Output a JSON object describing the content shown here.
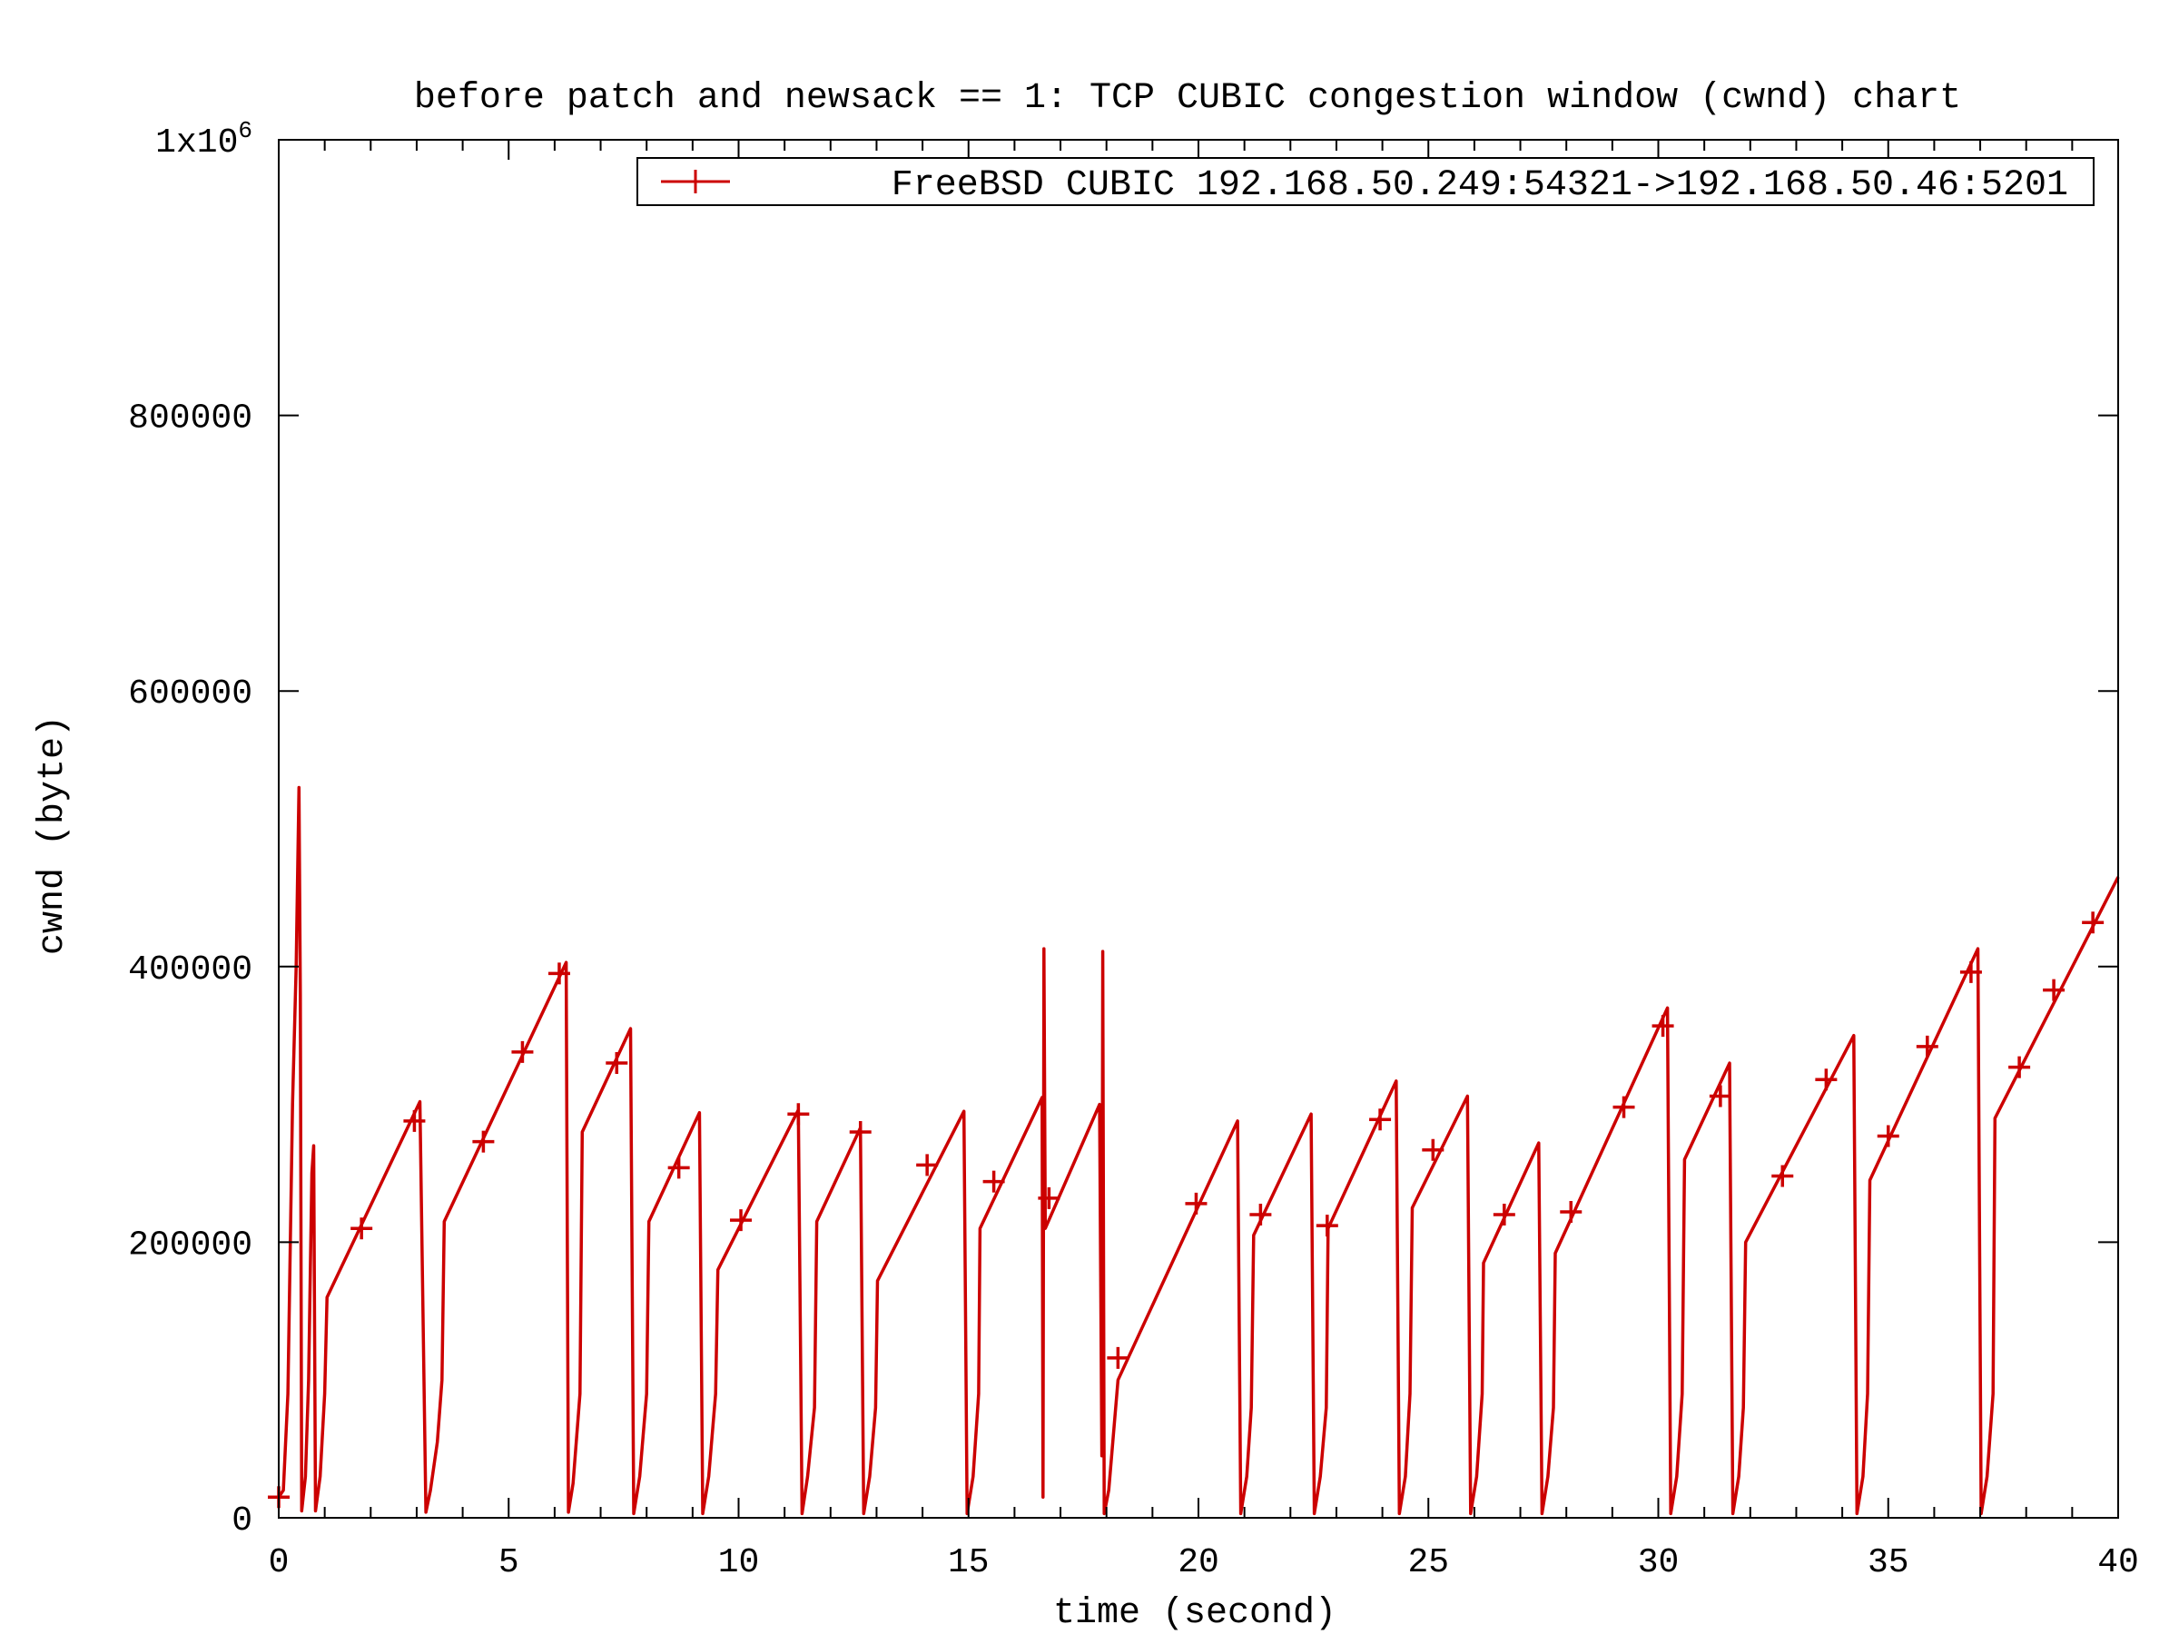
{
  "chart_data": {
    "type": "line",
    "title": "before patch and newsack == 1: TCP CUBIC congestion window (cwnd) chart",
    "xlabel": "time (second)",
    "ylabel": "cwnd (byte)",
    "xlim": [
      0,
      40
    ],
    "ylim": [
      0,
      1000000
    ],
    "x_ticks": [
      0,
      5,
      10,
      15,
      20,
      25,
      30,
      35,
      40
    ],
    "x_tick_labels": [
      "0",
      "5",
      "10",
      "15",
      "20",
      "25",
      "30",
      "35",
      "40"
    ],
    "x_minor_step": 1,
    "y_ticks": [
      0,
      200000,
      400000,
      600000,
      800000,
      1000000
    ],
    "y_tick_labels": [
      {
        "base": "0"
      },
      {
        "base": "200000"
      },
      {
        "base": "400000"
      },
      {
        "base": "600000"
      },
      {
        "base": "800000"
      },
      {
        "base": "1x10",
        "sup": "6"
      }
    ],
    "grid": false,
    "legend_position": "top-right",
    "colors": {
      "series": "#cc0000",
      "axis": "#000000",
      "background": "#ffffff"
    },
    "series": [
      {
        "name": "FreeBSD CUBIC 192.168.50.249:54321->192.168.50.46:5201",
        "marker": "plus",
        "points": [
          [
            0.0,
            15000
          ],
          [
            0.1,
            20000
          ],
          [
            0.2,
            90000
          ],
          [
            0.3,
            300000
          ],
          [
            0.38,
            400000
          ],
          [
            0.44,
            530000
          ],
          [
            0.47,
            380000
          ],
          [
            0.5,
            5000
          ],
          [
            0.58,
            30000
          ],
          [
            0.65,
            100000
          ],
          [
            0.72,
            250000
          ],
          [
            0.76,
            270000
          ],
          [
            0.8,
            5000
          ],
          [
            0.9,
            30000
          ],
          [
            1.0,
            90000
          ],
          [
            1.05,
            160000
          ],
          [
            3.07,
            302000
          ],
          [
            3.2,
            4000
          ],
          [
            3.3,
            20000
          ],
          [
            3.45,
            55000
          ],
          [
            3.55,
            100000
          ],
          [
            3.6,
            215000
          ],
          [
            6.25,
            403000
          ],
          [
            6.3,
            4000
          ],
          [
            6.4,
            25000
          ],
          [
            6.55,
            90000
          ],
          [
            6.6,
            280000
          ],
          [
            7.65,
            355000
          ],
          [
            7.72,
            3000
          ],
          [
            7.85,
            30000
          ],
          [
            8.0,
            90000
          ],
          [
            8.05,
            215000
          ],
          [
            9.15,
            294000
          ],
          [
            9.22,
            3000
          ],
          [
            9.35,
            30000
          ],
          [
            9.5,
            90000
          ],
          [
            9.55,
            180000
          ],
          [
            11.3,
            296000
          ],
          [
            11.38,
            3000
          ],
          [
            11.5,
            30000
          ],
          [
            11.65,
            80000
          ],
          [
            11.7,
            215000
          ],
          [
            12.65,
            283000
          ],
          [
            12.72,
            3000
          ],
          [
            12.85,
            30000
          ],
          [
            12.98,
            80000
          ],
          [
            13.02,
            172000
          ],
          [
            14.9,
            295000
          ],
          [
            14.97,
            3000
          ],
          [
            15.1,
            30000
          ],
          [
            15.22,
            90000
          ],
          [
            15.25,
            210000
          ],
          [
            16.6,
            305000
          ],
          [
            16.62,
            15000
          ],
          [
            16.64,
            413000
          ],
          [
            16.67,
            210000
          ],
          [
            17.85,
            300000
          ],
          [
            17.9,
            45000
          ],
          [
            17.92,
            411000
          ],
          [
            17.95,
            3000
          ],
          [
            18.05,
            20000
          ],
          [
            18.15,
            60000
          ],
          [
            18.25,
            100000
          ],
          [
            20.85,
            288000
          ],
          [
            20.92,
            3000
          ],
          [
            21.05,
            30000
          ],
          [
            21.15,
            80000
          ],
          [
            21.2,
            205000
          ],
          [
            22.45,
            293000
          ],
          [
            22.52,
            3000
          ],
          [
            22.65,
            30000
          ],
          [
            22.78,
            80000
          ],
          [
            22.82,
            210000
          ],
          [
            24.3,
            317000
          ],
          [
            24.37,
            3000
          ],
          [
            24.5,
            30000
          ],
          [
            24.6,
            90000
          ],
          [
            24.65,
            225000
          ],
          [
            25.85,
            306000
          ],
          [
            25.92,
            3000
          ],
          [
            26.05,
            30000
          ],
          [
            26.17,
            90000
          ],
          [
            26.2,
            185000
          ],
          [
            27.4,
            272000
          ],
          [
            27.47,
            3000
          ],
          [
            27.6,
            30000
          ],
          [
            27.72,
            80000
          ],
          [
            27.76,
            192000
          ],
          [
            30.2,
            370000
          ],
          [
            30.27,
            3000
          ],
          [
            30.4,
            30000
          ],
          [
            30.52,
            90000
          ],
          [
            30.57,
            260000
          ],
          [
            31.55,
            330000
          ],
          [
            31.62,
            3000
          ],
          [
            31.75,
            30000
          ],
          [
            31.85,
            80000
          ],
          [
            31.9,
            200000
          ],
          [
            34.25,
            350000
          ],
          [
            34.32,
            3000
          ],
          [
            34.45,
            30000
          ],
          [
            34.55,
            90000
          ],
          [
            34.6,
            245000
          ],
          [
            36.95,
            413000
          ],
          [
            37.02,
            3000
          ],
          [
            37.15,
            30000
          ],
          [
            37.28,
            90000
          ],
          [
            37.32,
            290000
          ],
          [
            40.0,
            465000
          ]
        ],
        "markers": [
          [
            0.0,
            15000
          ],
          [
            1.8,
            210000
          ],
          [
            2.95,
            288000
          ],
          [
            4.45,
            273000
          ],
          [
            5.3,
            338000
          ],
          [
            6.1,
            395000
          ],
          [
            7.35,
            330000
          ],
          [
            8.7,
            254000
          ],
          [
            10.05,
            216000
          ],
          [
            11.3,
            293000
          ],
          [
            12.65,
            280000
          ],
          [
            14.1,
            256000
          ],
          [
            15.55,
            244000
          ],
          [
            16.75,
            232000
          ],
          [
            18.25,
            116000
          ],
          [
            19.95,
            228000
          ],
          [
            21.35,
            220000
          ],
          [
            22.8,
            212000
          ],
          [
            23.95,
            289000
          ],
          [
            25.1,
            267000
          ],
          [
            26.65,
            220000
          ],
          [
            28.1,
            222000
          ],
          [
            29.25,
            298000
          ],
          [
            30.1,
            357000
          ],
          [
            31.35,
            306000
          ],
          [
            32.7,
            248000
          ],
          [
            33.65,
            318000
          ],
          [
            35.0,
            277000
          ],
          [
            35.85,
            342000
          ],
          [
            36.8,
            396000
          ],
          [
            37.85,
            327000
          ],
          [
            38.6,
            383000
          ],
          [
            39.45,
            432000
          ]
        ]
      }
    ]
  }
}
